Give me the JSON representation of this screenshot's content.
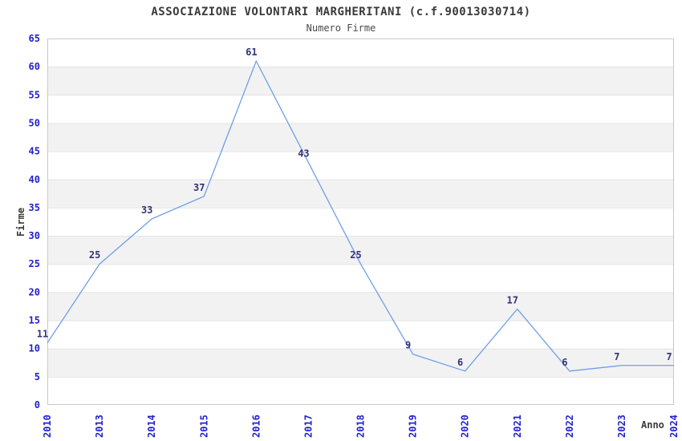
{
  "chart_data": {
    "type": "line",
    "title": "ASSOCIAZIONE VOLONTARI MARGHERITANI (c.f.90013030714)",
    "subtitle": "Numero Firme",
    "xlabel": "Anno",
    "ylabel": "Firme",
    "categories": [
      "2010",
      "2013",
      "2014",
      "2015",
      "2016",
      "2017",
      "2018",
      "2019",
      "2020",
      "2021",
      "2022",
      "2023",
      "2024"
    ],
    "values": [
      11,
      25,
      33,
      37,
      61,
      43,
      25,
      9,
      6,
      17,
      6,
      7,
      7
    ],
    "ylim": [
      0,
      65
    ],
    "ytick_step": 5,
    "grid": "horizontal-bands-alternating",
    "legend": "none",
    "colors": {
      "line": "#6f9fe8",
      "data_label": "#333377",
      "tick_label": "#2222cc",
      "band_fill": "#f2f2f2",
      "grid_line": "#e4e4e4",
      "plot_border": "#c8c8c8",
      "title_text": "#3a3a3a"
    }
  }
}
